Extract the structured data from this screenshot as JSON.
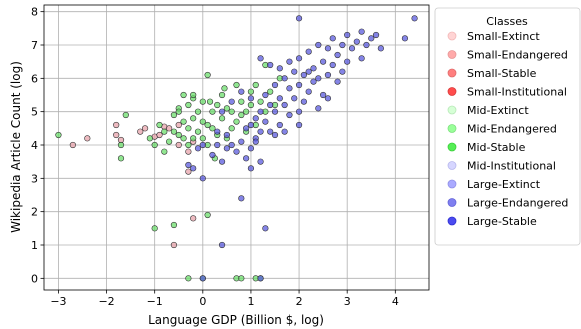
{
  "chart_data": {
    "type": "scatter",
    "xlabel": "Language GDP (Billion $, log)",
    "ylabel": "Wikipedia Article Count (log)",
    "xlim": [
      -3.3,
      4.7
    ],
    "ylim": [
      -0.35,
      8.2
    ],
    "x_ticks": [
      "−3",
      "−2",
      "−1",
      "0",
      "1",
      "2",
      "3",
      "4"
    ],
    "x_tick_values": [
      -3,
      -2,
      -1,
      0,
      1,
      2,
      3,
      4
    ],
    "y_ticks": [
      "0",
      "1",
      "2",
      "3",
      "4",
      "5",
      "6",
      "7",
      "8"
    ],
    "y_tick_values": [
      0,
      1,
      2,
      3,
      4,
      5,
      6,
      7,
      8
    ],
    "grid": true,
    "legend": {
      "title": "Classes",
      "placement": "outside right, top",
      "entries": [
        {
          "label": "Small-Extinct",
          "color": "#ffd4d4",
          "edge": "#f3b8b8"
        },
        {
          "label": "Small-Endangered",
          "color": "#ffaaaa",
          "edge": "#e79696"
        },
        {
          "label": "Small-Stable",
          "color": "#ff7f7f",
          "edge": "#e06c6c"
        },
        {
          "label": "Small-Institutional",
          "color": "#ff4c4c",
          "edge": "#d93a3a"
        },
        {
          "label": "Mid-Extinct",
          "color": "#d6ffd6",
          "edge": "#b8e8b8"
        },
        {
          "label": "Mid-Endangered",
          "color": "#99ff99",
          "edge": "#7ee07e"
        },
        {
          "label": "Mid-Stable",
          "color": "#55ee55",
          "edge": "#3ccf3c"
        },
        {
          "label": "Mid-Institutional",
          "color": "#d6d6ff",
          "edge": "#b8b8ee"
        },
        {
          "label": "Large-Extinct",
          "color": "#aaaaff",
          "edge": "#9090e6"
        },
        {
          "label": "Large-Endangered",
          "color": "#7f7ff0",
          "edge": "#6464d8"
        },
        {
          "label": "Large-Stable",
          "color": "#4b4bf0",
          "edge": "#2f2fd0"
        }
      ]
    },
    "series": [
      {
        "name": "Small-Stable",
        "color": "#e6a0a8",
        "points": [
          [
            -2.7,
            4.0
          ],
          [
            -2.4,
            4.2
          ],
          [
            -1.8,
            4.6
          ],
          [
            -1.8,
            4.3
          ],
          [
            -1.7,
            4.15
          ],
          [
            -1.3,
            4.4
          ],
          [
            -1.2,
            4.5
          ],
          [
            -1.0,
            4.25
          ],
          [
            -0.9,
            4.3
          ],
          [
            -0.8,
            4.55
          ],
          [
            -0.7,
            4.5
          ],
          [
            -0.5,
            4.6
          ],
          [
            -0.3,
            3.2
          ],
          [
            -0.3,
            3.8
          ],
          [
            -0.2,
            1.8
          ],
          [
            -0.6,
            1.0
          ],
          [
            -0.5,
            4.0
          ],
          [
            -0.2,
            4.1
          ]
        ]
      },
      {
        "name": "Mid-Stable",
        "color": "#66dd66",
        "points": [
          [
            -3.0,
            4.3
          ],
          [
            -1.7,
            3.6
          ],
          [
            -1.7,
            4.0
          ],
          [
            -1.6,
            4.9
          ],
          [
            -1.1,
            4.2
          ],
          [
            -1.0,
            4.0
          ],
          [
            -0.9,
            4.6
          ],
          [
            -0.8,
            4.4
          ],
          [
            -0.8,
            3.8
          ],
          [
            -0.7,
            4.1
          ],
          [
            -0.6,
            4.9
          ],
          [
            -0.6,
            4.4
          ],
          [
            -0.5,
            5.1
          ],
          [
            -0.5,
            4.3
          ],
          [
            -0.4,
            5.5
          ],
          [
            -0.4,
            4.7
          ],
          [
            -0.3,
            5.2
          ],
          [
            -0.3,
            4.5
          ],
          [
            -0.3,
            4.0
          ],
          [
            -0.2,
            5.4
          ],
          [
            -0.2,
            4.8
          ],
          [
            -0.2,
            4.2
          ],
          [
            -0.1,
            5.0
          ],
          [
            -0.1,
            4.4
          ],
          [
            0.0,
            5.3
          ],
          [
            0.0,
            4.7
          ],
          [
            0.0,
            4.2
          ],
          [
            0.1,
            6.1
          ],
          [
            0.1,
            4.6
          ],
          [
            0.1,
            4.0
          ],
          [
            0.2,
            5.0
          ],
          [
            0.2,
            4.5
          ],
          [
            0.3,
            5.2
          ],
          [
            0.3,
            4.3
          ],
          [
            0.4,
            5.5
          ],
          [
            0.4,
            4.8
          ],
          [
            0.5,
            5.1
          ],
          [
            0.5,
            4.2
          ],
          [
            0.6,
            5.0
          ],
          [
            0.6,
            4.5
          ],
          [
            0.7,
            5.8
          ],
          [
            0.7,
            4.7
          ],
          [
            0.8,
            5.3
          ],
          [
            0.8,
            4.9
          ],
          [
            0.9,
            5.0
          ],
          [
            0.9,
            4.4
          ],
          [
            1.0,
            5.6
          ],
          [
            1.0,
            5.2
          ],
          [
            1.1,
            5.8
          ],
          [
            1.1,
            4.6
          ],
          [
            1.2,
            5.3
          ],
          [
            1.3,
            6.4
          ],
          [
            1.3,
            5.0
          ],
          [
            1.4,
            5.6
          ],
          [
            1.5,
            5.2
          ],
          [
            1.6,
            6.0
          ],
          [
            -0.2,
            5.5
          ],
          [
            -0.5,
            5.0
          ],
          [
            0.15,
            5.3
          ],
          [
            0.45,
            5.7
          ],
          [
            -0.4,
            4.2
          ],
          [
            0.25,
            3.6
          ],
          [
            -0.6,
            1.6
          ],
          [
            -1.0,
            1.5
          ],
          [
            0.1,
            1.9
          ],
          [
            -0.3,
            0.0
          ],
          [
            0.0,
            0.0
          ],
          [
            0.7,
            0.0
          ],
          [
            0.8,
            0.0
          ],
          [
            1.1,
            0.0
          ],
          [
            1.2,
            0.0
          ]
        ]
      },
      {
        "name": "Large-Stable",
        "color": "#5555dd",
        "points": [
          [
            -0.3,
            3.4
          ],
          [
            -0.2,
            3.3
          ],
          [
            -0.1,
            3.9
          ],
          [
            0.0,
            4.0
          ],
          [
            0.0,
            3.0
          ],
          [
            0.2,
            3.7
          ],
          [
            0.3,
            4.0
          ],
          [
            0.4,
            3.5
          ],
          [
            0.5,
            4.3
          ],
          [
            0.6,
            4.0
          ],
          [
            0.7,
            3.8
          ],
          [
            0.8,
            4.1
          ],
          [
            0.9,
            4.5
          ],
          [
            1.0,
            4.6
          ],
          [
            1.0,
            3.9
          ],
          [
            1.1,
            4.8
          ],
          [
            1.1,
            4.2
          ],
          [
            1.2,
            5.0
          ],
          [
            1.2,
            4.4
          ],
          [
            1.3,
            5.5
          ],
          [
            1.3,
            4.7
          ],
          [
            1.4,
            5.2
          ],
          [
            1.4,
            4.4
          ],
          [
            1.5,
            5.8
          ],
          [
            1.5,
            5.0
          ],
          [
            1.6,
            5.4
          ],
          [
            1.6,
            4.6
          ],
          [
            1.7,
            6.0
          ],
          [
            1.7,
            5.2
          ],
          [
            1.8,
            5.7
          ],
          [
            1.8,
            4.9
          ],
          [
            1.9,
            6.2
          ],
          [
            1.9,
            5.4
          ],
          [
            2.0,
            6.6
          ],
          [
            2.0,
            5.8
          ],
          [
            2.0,
            5.0
          ],
          [
            2.1,
            6.1
          ],
          [
            2.1,
            5.3
          ],
          [
            2.2,
            6.8
          ],
          [
            2.2,
            5.6
          ],
          [
            2.3,
            6.3
          ],
          [
            2.3,
            5.9
          ],
          [
            2.4,
            7.0
          ],
          [
            2.4,
            6.0
          ],
          [
            2.5,
            6.5
          ],
          [
            2.5,
            5.5
          ],
          [
            2.6,
            6.9
          ],
          [
            2.6,
            6.1
          ],
          [
            2.7,
            7.2
          ],
          [
            2.7,
            6.4
          ],
          [
            2.8,
            6.7
          ],
          [
            2.8,
            5.9
          ],
          [
            2.9,
            7.0
          ],
          [
            2.9,
            6.2
          ],
          [
            3.0,
            7.3
          ],
          [
            3.0,
            6.5
          ],
          [
            3.1,
            6.9
          ],
          [
            3.2,
            7.1
          ],
          [
            3.3,
            7.4
          ],
          [
            3.3,
            6.6
          ],
          [
            3.4,
            7.0
          ],
          [
            3.5,
            7.2
          ],
          [
            3.6,
            7.3
          ],
          [
            3.7,
            6.9
          ],
          [
            4.2,
            7.2
          ],
          [
            4.4,
            7.8
          ],
          [
            2.0,
            7.8
          ],
          [
            2.2,
            6.2
          ],
          [
            1.6,
            6.3
          ],
          [
            1.2,
            6.6
          ],
          [
            1.4,
            6.4
          ],
          [
            1.8,
            6.5
          ],
          [
            1.0,
            5.4
          ],
          [
            0.8,
            5.6
          ],
          [
            0.6,
            5.3
          ],
          [
            0.4,
            5.0
          ],
          [
            0.3,
            4.4
          ],
          [
            0.5,
            3.9
          ],
          [
            0.9,
            3.6
          ],
          [
            1.2,
            3.5
          ],
          [
            1.0,
            3.3
          ],
          [
            1.1,
            4.1
          ],
          [
            1.5,
            4.3
          ],
          [
            1.7,
            4.4
          ],
          [
            2.0,
            4.6
          ],
          [
            2.4,
            5.1
          ],
          [
            2.6,
            5.4
          ],
          [
            0.4,
            1.0
          ],
          [
            0.8,
            2.4
          ],
          [
            1.3,
            1.5
          ],
          [
            1.2,
            0.0
          ],
          [
            0.0,
            0.0
          ]
        ]
      }
    ]
  }
}
